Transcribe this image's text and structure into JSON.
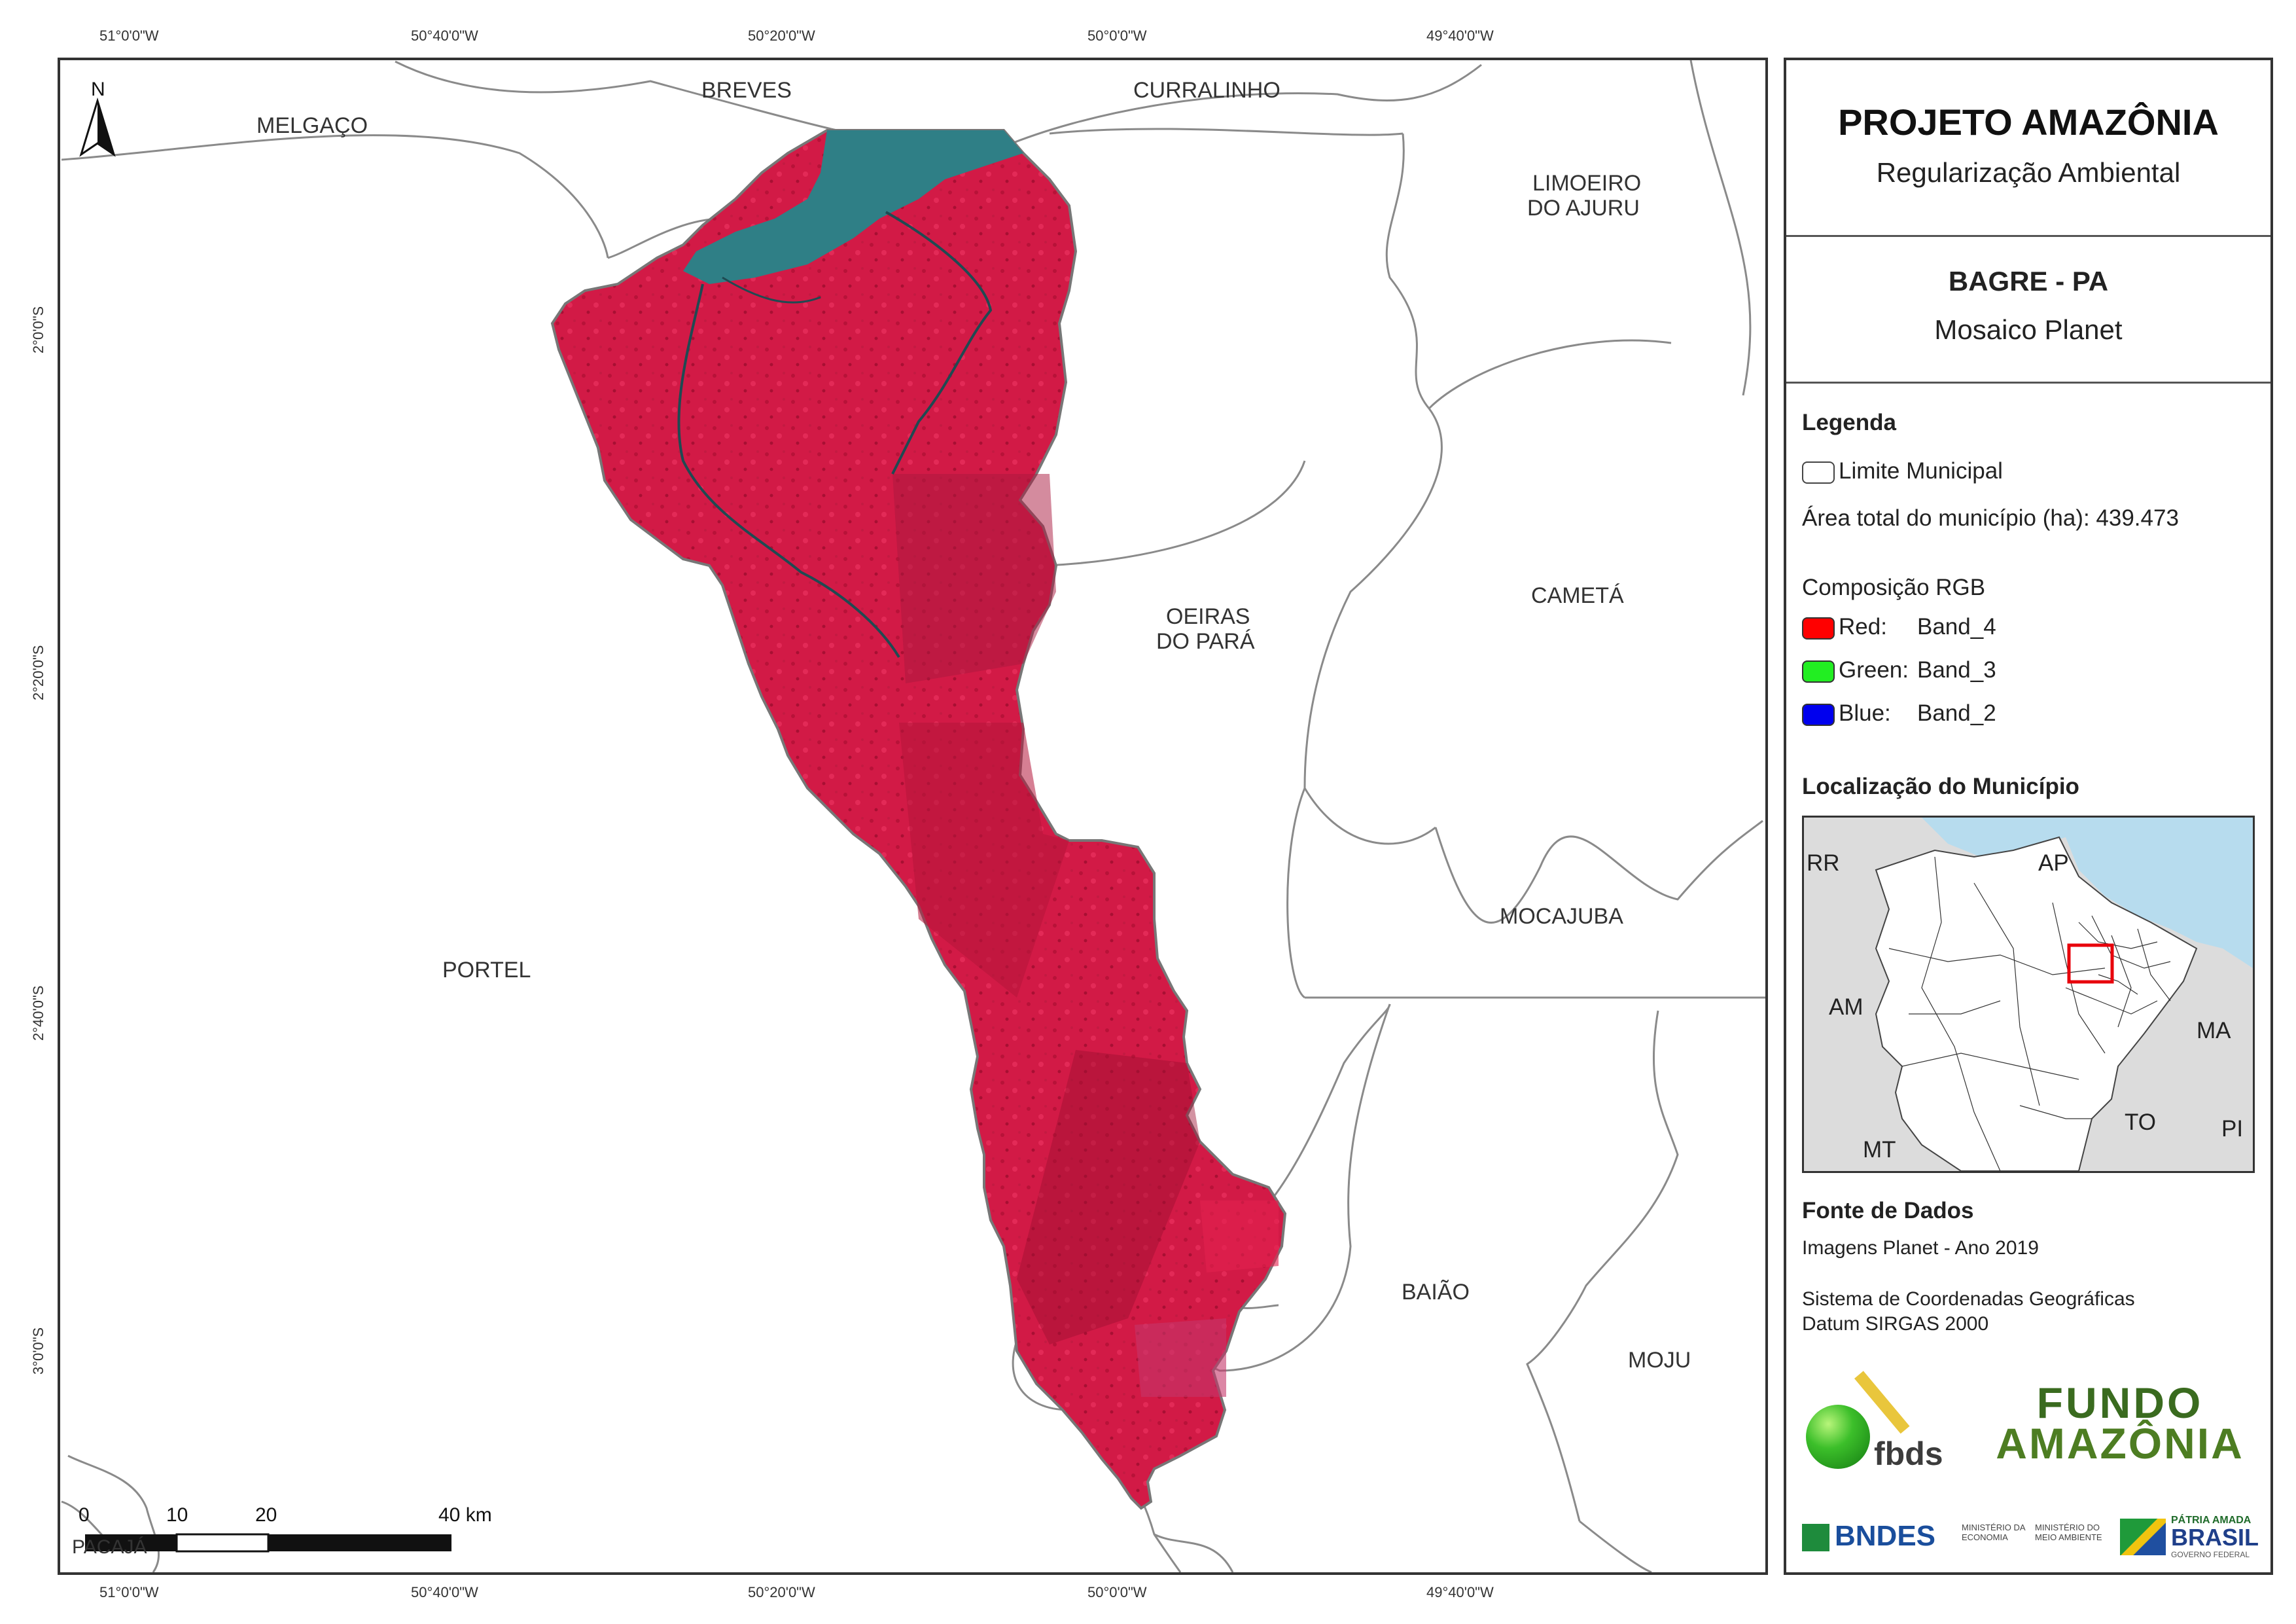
{
  "map": {
    "top_coords": [
      "51°0'0\"W",
      "50°40'0\"W",
      "50°20'0\"W",
      "50°0'0\"W",
      "49°40'0\"W"
    ],
    "bottom_coords": [
      "51°0'0\"W",
      "50°40'0\"W",
      "50°20'0\"W",
      "50°0'0\"W",
      "49°40'0\"W"
    ],
    "left_coords": [
      "2°0'0\"S",
      "2°20'0\"S",
      "2°40'0\"S",
      "3°0'0\"S"
    ],
    "north_label": "N",
    "places": {
      "melgaco": "MELGAÇO",
      "breves": "BREVES",
      "curralinho": "CURRALINHO",
      "limoeiro_1": "LIMOEIRO",
      "limoeiro_2": "DO AJURU",
      "oeiras_1": "OEIRAS",
      "oeiras_2": "DO PARÁ",
      "cameta": "CAMETÁ",
      "mocajuba": "MOCAJUBA",
      "portel": "PORTEL",
      "baiao": "BAIÃO",
      "moju": "MOJU",
      "pacaja": "PACAJÁ"
    },
    "scale": {
      "labels": [
        "0",
        "10",
        "20",
        "40 km"
      ]
    },
    "colors": {
      "imagery": "#d21a46",
      "water": "#2f7f86",
      "boundary": "#8a8a8a"
    }
  },
  "panel": {
    "title": "PROJETO AMAZÔNIA",
    "subtitle": "Regularização Ambiental",
    "municipality": "BAGRE - PA",
    "product": "Mosaico Planet",
    "legend": {
      "heading": "Legenda",
      "boundary_label": "Limite Municipal",
      "area_text": "Área total do município (ha): 439.473",
      "rgb_heading": "Composição RGB",
      "bands": [
        {
          "label": "Red:",
          "band": "Band_4",
          "color": "#ff0000"
        },
        {
          "label": "Green:",
          "band": "Band_3",
          "color": "#22ee22"
        },
        {
          "label": "Blue:",
          "band": "Band_2",
          "color": "#0000ee"
        }
      ]
    },
    "location": {
      "heading": "Localização do Município",
      "states": [
        "RR",
        "AP",
        "AM",
        "MA",
        "TO",
        "PI",
        "MT"
      ],
      "colors": {
        "sea": "#b7dcee",
        "state": "#dcdcdc",
        "para": "#ffffff",
        "highlight": "#e8000b"
      }
    },
    "sources": {
      "heading": "Fonte de Dados",
      "line1": "Imagens Planet - Ano 2019",
      "line2": "Sistema de Coordenadas Geográficas",
      "line3": "Datum SIRGAS 2000"
    },
    "logos": {
      "fbds": "fbds",
      "fundo_1": "FUNDO",
      "fundo_2": "AMAZÔNIA",
      "bndes": "BNDES",
      "min_eco_1": "MINISTÉRIO DA",
      "min_eco_2": "ECONOMIA",
      "min_amb_1": "MINISTÉRIO DO",
      "min_amb_2": "MEIO AMBIENTE",
      "patria": "PÁTRIA AMADA",
      "brasil": "BRASIL",
      "governo": "GOVERNO FEDERAL"
    }
  }
}
